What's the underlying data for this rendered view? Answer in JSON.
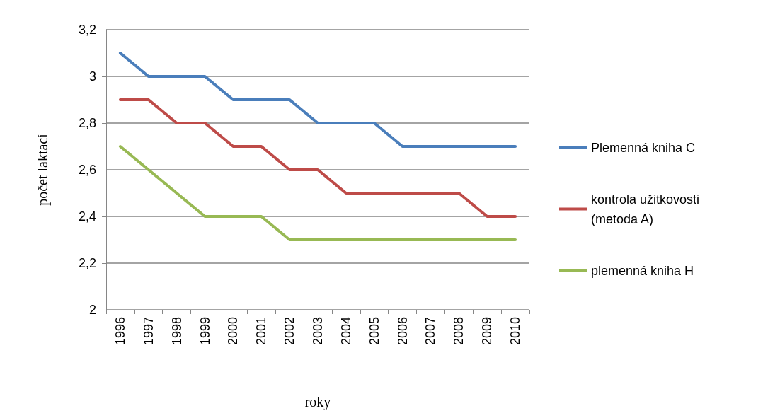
{
  "chart_data": {
    "type": "line",
    "xlabel": "roky",
    "ylabel": "počet laktací",
    "categories": [
      "1996",
      "1997",
      "1998",
      "1999",
      "2000",
      "2001",
      "2002",
      "2003",
      "2004",
      "2005",
      "2006",
      "2007",
      "2008",
      "2009",
      "2010"
    ],
    "series": [
      {
        "name": "Plemenná kniha C",
        "color": "#4a7ebb",
        "values": [
          3.1,
          3.0,
          3.0,
          3.0,
          2.9,
          2.9,
          2.9,
          2.8,
          2.8,
          2.8,
          2.7,
          2.7,
          2.7,
          2.7,
          2.7
        ]
      },
      {
        "name": "kontrola užitkovosti (metoda A)",
        "color": "#be4b48",
        "values": [
          2.9,
          2.9,
          2.8,
          2.8,
          2.7,
          2.7,
          2.6,
          2.6,
          2.5,
          2.5,
          2.5,
          2.5,
          2.5,
          2.4,
          2.4
        ]
      },
      {
        "name": "plemenná kniha H",
        "color": "#98b954",
        "values": [
          2.7,
          2.6,
          2.5,
          2.4,
          2.4,
          2.4,
          2.3,
          2.3,
          2.3,
          2.3,
          2.3,
          2.3,
          2.3,
          2.3,
          2.3
        ]
      }
    ],
    "ylim": [
      2,
      3.2
    ],
    "yticks": [
      2,
      {
        "value": 2.2,
        "label": "2,2"
      },
      {
        "value": 2.4,
        "label": "2,4"
      },
      {
        "value": 2.6,
        "label": "2,6"
      },
      {
        "value": 2.8,
        "label": "2,8"
      },
      3,
      {
        "value": 3.2,
        "label": "3,2"
      }
    ],
    "grid": "y",
    "legend": "right",
    "marker": "none",
    "line_style": "solid"
  }
}
